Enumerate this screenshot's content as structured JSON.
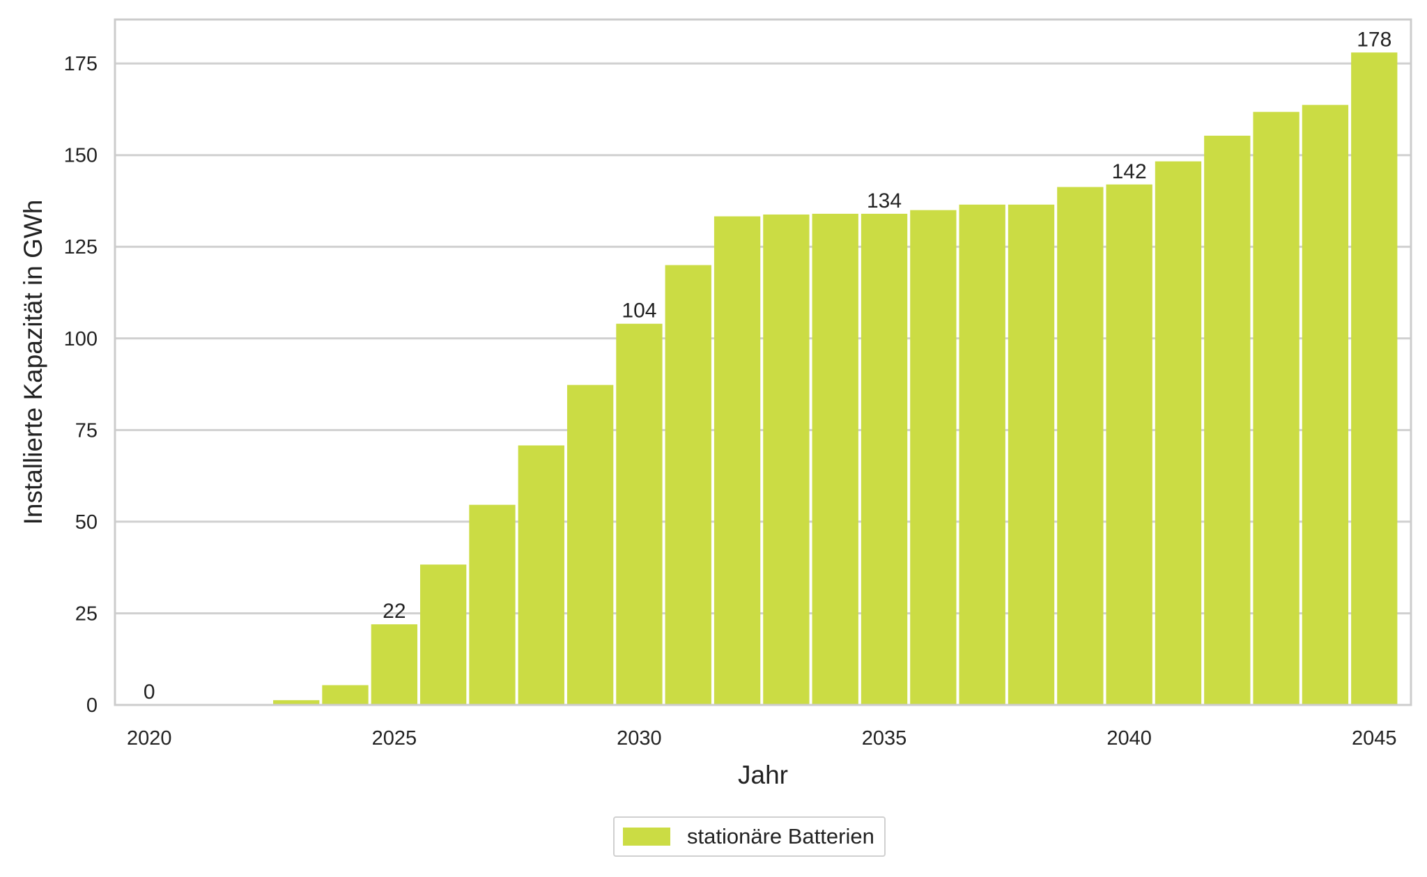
{
  "chart_data": {
    "type": "bar",
    "title": "",
    "xlabel": "Jahr",
    "ylabel": "Installierte Kapazität in GWh",
    "x_ticks": [
      "2020",
      "2025",
      "2030",
      "2035",
      "2040",
      "2045"
    ],
    "y_ticks": [
      "0",
      "25",
      "50",
      "75",
      "100",
      "125",
      "150",
      "175"
    ],
    "ylim": [
      0,
      187
    ],
    "xlim": [
      2019.3,
      2045.75
    ],
    "grid": "horizontal",
    "legend_position": "bottom-center",
    "bar_color": "#cbdc44",
    "series": [
      {
        "name": "stationäre Batterien",
        "x": [
          2020,
          2021,
          2022,
          2023,
          2024,
          2025,
          2026,
          2027,
          2028,
          2029,
          2030,
          2031,
          2032,
          2033,
          2034,
          2035,
          2036,
          2037,
          2038,
          2039,
          2040,
          2041,
          2042,
          2043,
          2044,
          2045
        ],
        "values": [
          0,
          0,
          0,
          1.3,
          5.4,
          22,
          38.3,
          54.6,
          70.8,
          87.3,
          104,
          120,
          133.3,
          133.8,
          134,
          134,
          135,
          136.5,
          136.5,
          141.3,
          142,
          148.3,
          155.3,
          161.8,
          163.7,
          178
        ]
      }
    ],
    "data_labels": [
      {
        "x": 2020,
        "text": "0"
      },
      {
        "x": 2025,
        "text": "22"
      },
      {
        "x": 2030,
        "text": "104"
      },
      {
        "x": 2035,
        "text": "134"
      },
      {
        "x": 2040,
        "text": "142"
      },
      {
        "x": 2045,
        "text": "178"
      }
    ]
  }
}
